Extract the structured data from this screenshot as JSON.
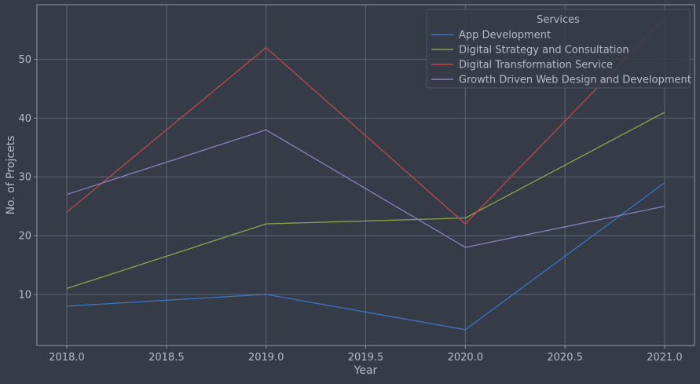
{
  "chart_data": {
    "type": "line",
    "title": "",
    "xlabel": "Year",
    "ylabel": "No. of Projcets",
    "xlim": [
      2017.85,
      2021.15
    ],
    "ylim": [
      1.3,
      59.3
    ],
    "x_ticks": [
      2018.0,
      2018.5,
      2019.0,
      2019.5,
      2020.0,
      2020.5,
      2021.0
    ],
    "x_tick_labels": [
      "2018.0",
      "2018.5",
      "2019.0",
      "2019.5",
      "2020.0",
      "2020.5",
      "2021.0"
    ],
    "y_ticks": [
      10,
      20,
      30,
      40,
      50
    ],
    "y_tick_labels": [
      "10",
      "20",
      "30",
      "40",
      "50"
    ],
    "grid": true,
    "x": [
      2018,
      2019,
      2020,
      2021
    ],
    "legend": {
      "title": "Services",
      "placement": "top-right"
    },
    "series": [
      {
        "name": "App Development",
        "values": [
          8,
          10,
          4,
          29
        ],
        "color": "#3d74c6"
      },
      {
        "name": "Digital Strategy and Consultation",
        "values": [
          11,
          22,
          23,
          41
        ],
        "color": "#88a64a"
      },
      {
        "name": "Digital Transformation Service",
        "values": [
          24,
          52,
          22,
          57
        ],
        "color": "#c14848"
      },
      {
        "name": "Growth Driven Web Design and Development",
        "values": [
          27,
          38,
          18,
          25
        ],
        "color": "#8a7fbf"
      }
    ]
  },
  "colors": {
    "background": "#353c48",
    "grid": "#5b6677",
    "axis": "#8e98ad",
    "text": "#b4bccb",
    "legend_bg": "#353c48",
    "legend_border": "#4d5566"
  }
}
